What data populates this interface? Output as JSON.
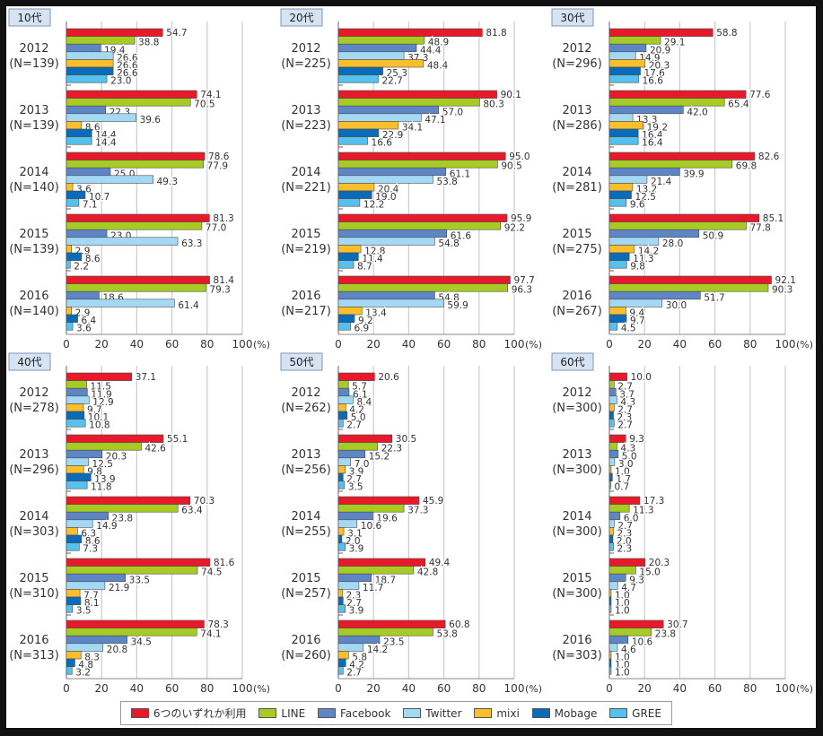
{
  "chart_data": {
    "type": "bar",
    "orientation": "horizontal",
    "xlim": [
      0,
      100
    ],
    "xticks": [
      "0",
      "20",
      "40",
      "60",
      "80",
      "100"
    ],
    "xunit": "(%)",
    "grid": true,
    "legend_position": "bottom",
    "series_names": [
      "6つのいずれか利用",
      "LINE",
      "Facebook",
      "Twitter",
      "mixi",
      "Mobage",
      "GREE"
    ],
    "series_colors": [
      "#e8192a",
      "#a8cb23",
      "#5f86c4",
      "#a3d9f5",
      "#fbbf2e",
      "#0b6bb8",
      "#56c1ee"
    ],
    "panels": [
      {
        "title": "10代",
        "groups": [
          {
            "year": "2012",
            "n": "(N=139)",
            "values": [
              54.7,
              38.8,
              19.4,
              26.6,
              26.6,
              26.6,
              23.0
            ]
          },
          {
            "year": "2013",
            "n": "(N=139)",
            "values": [
              74.1,
              70.5,
              22.3,
              39.6,
              8.6,
              14.4,
              14.4
            ]
          },
          {
            "year": "2014",
            "n": "(N=140)",
            "values": [
              78.6,
              77.9,
              25.0,
              49.3,
              3.6,
              10.7,
              7.1
            ]
          },
          {
            "year": "2015",
            "n": "(N=139)",
            "values": [
              81.3,
              77.0,
              23.0,
              63.3,
              2.9,
              8.6,
              2.2
            ]
          },
          {
            "year": "2016",
            "n": "(N=140)",
            "values": [
              81.4,
              79.3,
              18.6,
              61.4,
              2.9,
              6.4,
              3.6
            ]
          }
        ]
      },
      {
        "title": "20代",
        "groups": [
          {
            "year": "2012",
            "n": "(N=225)",
            "values": [
              81.8,
              48.9,
              44.4,
              37.3,
              48.4,
              25.3,
              22.7
            ]
          },
          {
            "year": "2013",
            "n": "(N=223)",
            "values": [
              90.1,
              80.3,
              57.0,
              47.1,
              34.1,
              22.9,
              16.6
            ]
          },
          {
            "year": "2014",
            "n": "(N=221)",
            "values": [
              95.0,
              90.5,
              61.1,
              53.8,
              20.4,
              19.0,
              12.2
            ]
          },
          {
            "year": "2015",
            "n": "(N=219)",
            "values": [
              95.9,
              92.2,
              61.6,
              54.8,
              12.8,
              11.4,
              8.7
            ]
          },
          {
            "year": "2016",
            "n": "(N=217)",
            "values": [
              97.7,
              96.3,
              54.8,
              59.9,
              13.4,
              9.2,
              6.9
            ]
          }
        ]
      },
      {
        "title": "30代",
        "groups": [
          {
            "year": "2012",
            "n": "(N=296)",
            "values": [
              58.8,
              29.1,
              20.9,
              14.9,
              20.3,
              17.6,
              16.6
            ]
          },
          {
            "year": "2013",
            "n": "(N=286)",
            "values": [
              77.6,
              65.4,
              42.0,
              13.3,
              19.2,
              16.4,
              16.4
            ]
          },
          {
            "year": "2014",
            "n": "(N=281)",
            "values": [
              82.6,
              69.8,
              39.9,
              21.4,
              13.2,
              12.5,
              9.6
            ]
          },
          {
            "year": "2015",
            "n": "(N=275)",
            "values": [
              85.1,
              77.8,
              50.9,
              28.0,
              14.2,
              11.3,
              9.8
            ]
          },
          {
            "year": "2016",
            "n": "(N=267)",
            "values": [
              92.1,
              90.3,
              51.7,
              30.0,
              9.4,
              9.7,
              4.5
            ]
          }
        ]
      },
      {
        "title": "40代",
        "groups": [
          {
            "year": "2012",
            "n": "(N=278)",
            "values": [
              37.1,
              11.5,
              11.9,
              12.9,
              9.7,
              10.1,
              10.8
            ]
          },
          {
            "year": "2013",
            "n": "(N=296)",
            "values": [
              55.1,
              42.6,
              20.3,
              12.5,
              9.8,
              13.9,
              11.8
            ]
          },
          {
            "year": "2014",
            "n": "(N=303)",
            "values": [
              70.3,
              63.4,
              23.8,
              14.9,
              6.3,
              8.6,
              7.3
            ]
          },
          {
            "year": "2015",
            "n": "(N=310)",
            "values": [
              81.6,
              74.5,
              33.5,
              21.9,
              7.7,
              8.1,
              3.5
            ]
          },
          {
            "year": "2016",
            "n": "(N=313)",
            "values": [
              78.3,
              74.1,
              34.5,
              20.8,
              8.3,
              4.8,
              3.2
            ]
          }
        ]
      },
      {
        "title": "50代",
        "groups": [
          {
            "year": "2012",
            "n": "(N=262)",
            "values": [
              20.6,
              5.7,
              6.1,
              8.4,
              4.2,
              5.0,
              2.7
            ]
          },
          {
            "year": "2013",
            "n": "(N=256)",
            "values": [
              30.5,
              22.3,
              15.2,
              7.0,
              3.9,
              2.7,
              3.5
            ]
          },
          {
            "year": "2014",
            "n": "(N=255)",
            "values": [
              45.9,
              37.3,
              19.6,
              10.6,
              3.1,
              2.0,
              3.9
            ]
          },
          {
            "year": "2015",
            "n": "(N=257)",
            "values": [
              49.4,
              42.8,
              18.7,
              11.7,
              2.3,
              2.7,
              3.9
            ]
          },
          {
            "year": "2016",
            "n": "(N=260)",
            "values": [
              60.8,
              53.8,
              23.5,
              14.2,
              5.8,
              4.2,
              2.7
            ]
          }
        ]
      },
      {
        "title": "60代",
        "groups": [
          {
            "year": "2012",
            "n": "(N=300)",
            "values": [
              10.0,
              2.7,
              3.7,
              4.3,
              2.7,
              2.3,
              2.7
            ]
          },
          {
            "year": "2013",
            "n": "(N=300)",
            "values": [
              9.3,
              4.3,
              5.0,
              3.0,
              1.0,
              1.7,
              0.7
            ]
          },
          {
            "year": "2014",
            "n": "(N=300)",
            "values": [
              17.3,
              11.3,
              6.0,
              2.7,
              2.3,
              2.0,
              2.3
            ]
          },
          {
            "year": "2015",
            "n": "(N=300)",
            "values": [
              20.3,
              15.0,
              9.3,
              4.7,
              1.0,
              1.0,
              1.0
            ]
          },
          {
            "year": "2016",
            "n": "(N=303)",
            "values": [
              30.7,
              23.8,
              10.6,
              4.6,
              1.0,
              1.0,
              1.0
            ]
          }
        ]
      }
    ]
  },
  "legend": {
    "items": [
      {
        "label": "6つのいずれか利用",
        "color": "#e8192a"
      },
      {
        "label": "LINE",
        "color": "#a8cb23"
      },
      {
        "label": "Facebook",
        "color": "#5f86c4"
      },
      {
        "label": "Twitter",
        "color": "#a3d9f5"
      },
      {
        "label": "mixi",
        "color": "#fbbf2e"
      },
      {
        "label": "Mobage",
        "color": "#0b6bb8"
      },
      {
        "label": "GREE",
        "color": "#56c1ee"
      }
    ]
  }
}
